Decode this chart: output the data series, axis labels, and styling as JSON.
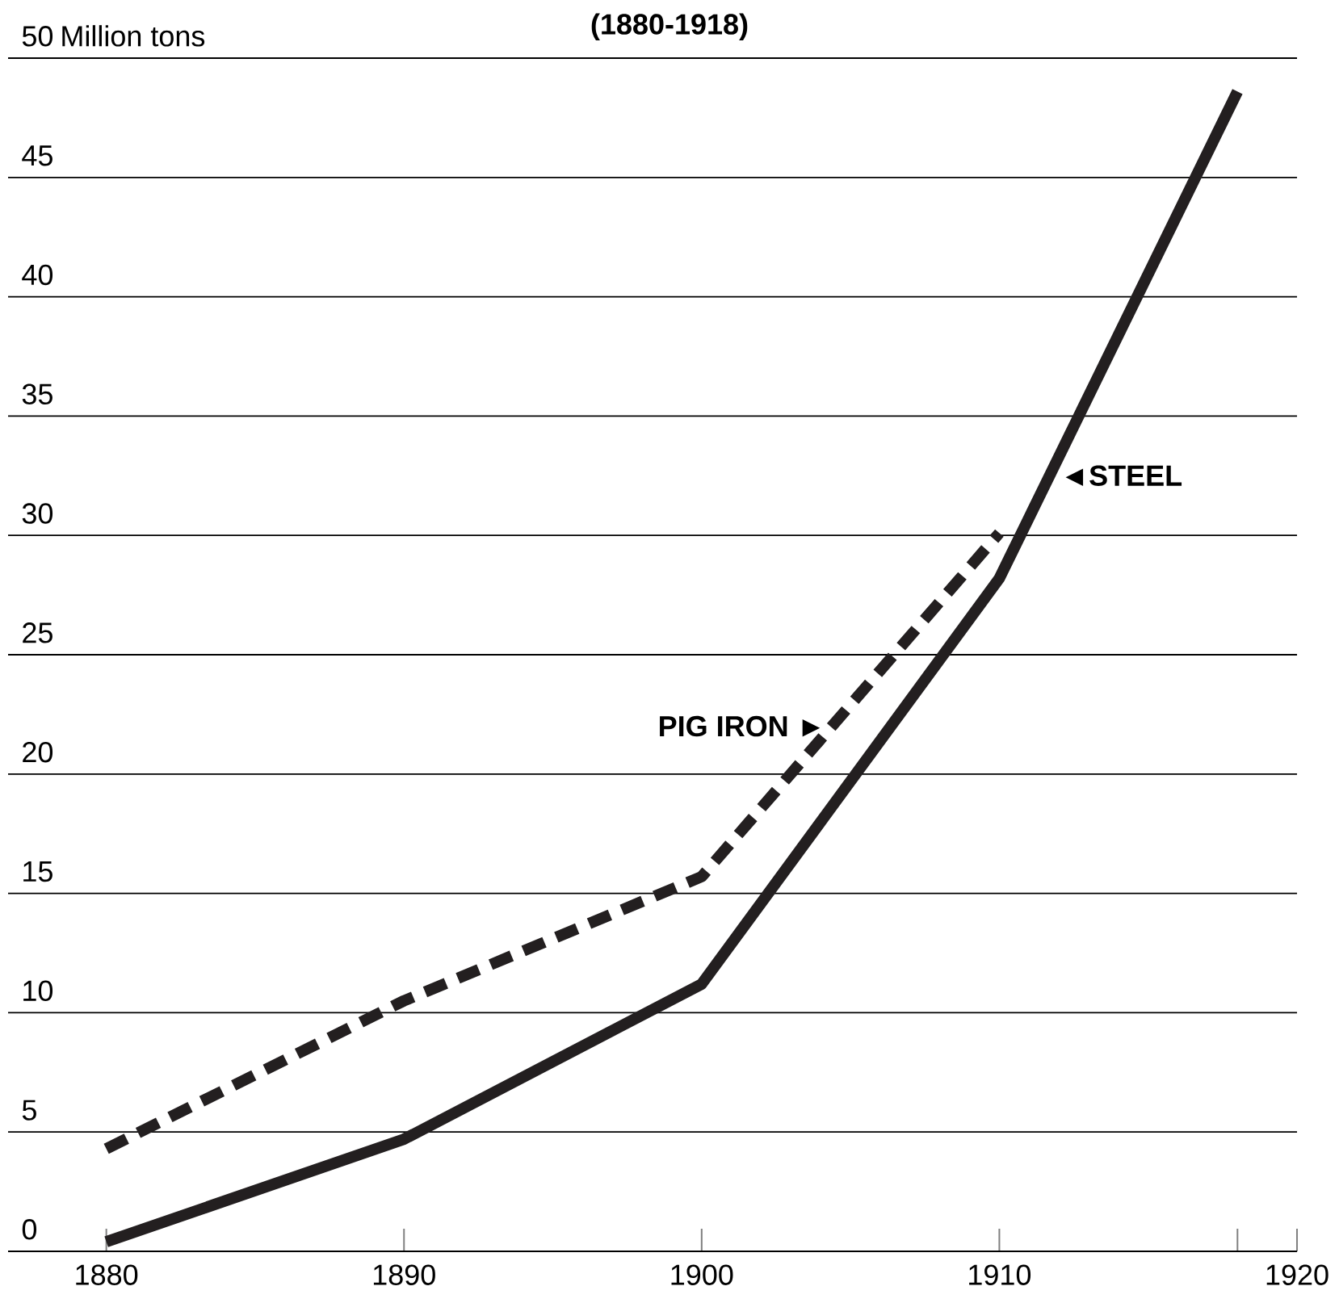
{
  "chart_data": {
    "type": "line",
    "subtitle": "(1880-1918)",
    "ylabel": "Million tons",
    "xlim": [
      1876.7,
      1920
    ],
    "ylim": [
      0,
      50
    ],
    "xticks": [
      1880,
      1890,
      1900,
      1910,
      {
        "value": 1918,
        "label": null
      },
      1920
    ],
    "yticks": [
      0,
      5,
      10,
      15,
      20,
      25,
      30,
      35,
      40,
      45,
      50
    ],
    "grid": "y",
    "marker": "none",
    "series": [
      {
        "color": "#231f20",
        "line_style": "solid",
        "x": [
          1880,
          1890,
          1900,
          1910,
          1918
        ],
        "values": [
          0.4,
          4.7,
          11.2,
          28.2,
          48.6
        ]
      },
      {
        "color": "#231f20",
        "line_style": "dashed",
        "x": [
          1880,
          1890,
          1900,
          1910
        ],
        "values": [
          4.3,
          10.5,
          15.7,
          30.1
        ]
      }
    ],
    "annotations": [
      {
        "text": "◄STEEL",
        "x": 1911.7,
        "y": 32.5
      },
      {
        "text": "PIG IRON ►",
        "x": 1904.5,
        "y": 22
      }
    ]
  }
}
